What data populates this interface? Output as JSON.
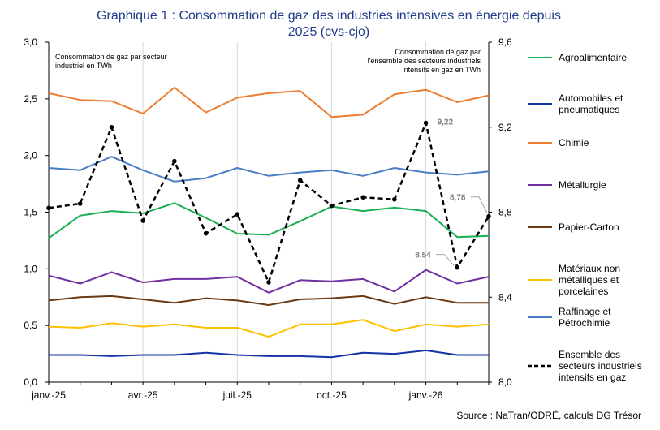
{
  "chart_data": {
    "type": "line",
    "title_lines": [
      "Graphique 1 : Consommation  de gaz des industries intensives en énergie depuis",
      "2025 (cvs-cjo)"
    ],
    "left_axis_note": [
      "Consommation de gaz par secteur",
      "industriel en TWh"
    ],
    "right_axis_note": [
      "Consommation de gaz par",
      "l'ensemble des secteurs industriels",
      "intensifs en gaz en TWh"
    ],
    "source": "Source : NaTran/ODRÉ, calculs DG Trésor",
    "x": [
      "janv.-25",
      "févr.-25",
      "mars-25",
      "avr.-25",
      "mai-25",
      "juin-25",
      "juil.-25",
      "août-25",
      "sept.-25",
      "oct.-25",
      "nov.-25",
      "déc.-25",
      "janv.-26",
      "févr.-26",
      "mars-26"
    ],
    "x_tick_labels": [
      "janv.-25",
      "",
      "",
      "avr.-25",
      "",
      "",
      "juil.-25",
      "",
      "",
      "oct.-25",
      "",
      "",
      "janv.-26",
      "",
      ""
    ],
    "y_left": {
      "min": 0,
      "max": 3,
      "ticks": [
        "0,0",
        "0,5",
        "1,0",
        "1,5",
        "2,0",
        "2,5",
        "3,0"
      ]
    },
    "y_right": {
      "min": 8.0,
      "max": 9.6,
      "ticks": [
        "8,0",
        "8,4",
        "8,8",
        "9,2",
        "9,6"
      ]
    },
    "grid": "vertical",
    "legend_position": "right",
    "series": [
      {
        "name": "Agroalimentaire",
        "color": "#1AAF54",
        "axis": "left",
        "dashed": false,
        "legend_lines": [
          "Agroalimentaire"
        ],
        "values": [
          1.27,
          1.47,
          1.51,
          1.49,
          1.58,
          1.45,
          1.31,
          1.3,
          1.42,
          1.55,
          1.51,
          1.54,
          1.51,
          1.28,
          1.29
        ]
      },
      {
        "name": "Automobiles et pneumatiques",
        "color": "#1533A6",
        "axis": "left",
        "dashed": false,
        "legend_lines": [
          "Automobiles et",
          "pneumatiques"
        ],
        "values": [
          0.24,
          0.24,
          0.23,
          0.24,
          0.24,
          0.26,
          0.24,
          0.23,
          0.23,
          0.22,
          0.26,
          0.25,
          0.28,
          0.24,
          0.24
        ]
      },
      {
        "name": "Chimie",
        "color": "#ED7D31",
        "axis": "left",
        "dashed": false,
        "legend_lines": [
          "Chimie"
        ],
        "values": [
          2.55,
          2.49,
          2.48,
          2.37,
          2.6,
          2.38,
          2.51,
          2.55,
          2.57,
          2.34,
          2.36,
          2.54,
          2.58,
          2.47,
          2.53
        ]
      },
      {
        "name": "Métallurgie",
        "color": "#7030A0",
        "axis": "left",
        "dashed": false,
        "legend_lines": [
          "Métallurgie"
        ],
        "values": [
          0.94,
          0.87,
          0.97,
          0.88,
          0.91,
          0.91,
          0.93,
          0.79,
          0.9,
          0.89,
          0.91,
          0.8,
          0.99,
          0.87,
          0.93
        ]
      },
      {
        "name": "Papier-Carton",
        "color": "#6B3A14",
        "axis": "left",
        "dashed": false,
        "legend_lines": [
          "Papier-Carton"
        ],
        "values": [
          0.72,
          0.75,
          0.76,
          0.73,
          0.7,
          0.74,
          0.72,
          0.68,
          0.73,
          0.74,
          0.76,
          0.69,
          0.75,
          0.7,
          0.7
        ]
      },
      {
        "name": "Matériaux non métalliques et porcelaines",
        "color": "#FFC000",
        "axis": "left",
        "dashed": false,
        "legend_lines": [
          "Matériaux non",
          "métalliques et",
          "porcelaines"
        ],
        "values": [
          0.49,
          0.48,
          0.52,
          0.49,
          0.51,
          0.48,
          0.48,
          0.4,
          0.51,
          0.51,
          0.55,
          0.45,
          0.51,
          0.49,
          0.51
        ]
      },
      {
        "name": "Raffinage et Pétrochimie",
        "color": "#4A7EC4",
        "axis": "left",
        "dashed": false,
        "legend_lines": [
          "Raffinage et",
          "Pétrochimie"
        ],
        "values": [
          1.89,
          1.87,
          1.99,
          1.87,
          1.77,
          1.8,
          1.89,
          1.82,
          1.85,
          1.87,
          1.82,
          1.89,
          1.85,
          1.83,
          1.86
        ]
      },
      {
        "name": "Ensemble des secteurs industriels intensifs en gaz",
        "color": "#000000",
        "axis": "right",
        "dashed": true,
        "legend_lines": [
          "Ensemble des",
          "secteurs industriels",
          "intensifs en gaz"
        ],
        "values": [
          8.82,
          8.84,
          9.2,
          8.76,
          9.04,
          8.7,
          8.79,
          8.47,
          8.95,
          8.83,
          8.87,
          8.86,
          9.22,
          8.54,
          8.78
        ]
      }
    ],
    "annotations": [
      {
        "text": "9,22",
        "x": "janv.-26",
        "value": 9.22,
        "axis": "right"
      },
      {
        "text": "8,78",
        "x": "mars-26",
        "value": 8.78,
        "axis": "right"
      },
      {
        "text": "8,54",
        "x": "févr.-26",
        "value": 8.54,
        "axis": "right"
      }
    ]
  }
}
